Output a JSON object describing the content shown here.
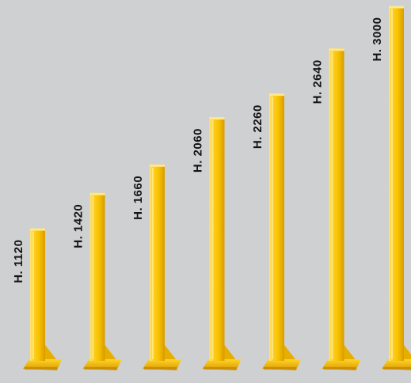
{
  "colors": {
    "background": "#cfd0d1",
    "post_light": "#ffd836",
    "post_main": "#f5c400",
    "post_shadow": "#d69a00",
    "label_text": "#141414"
  },
  "posts": [
    {
      "label": "H. 1120",
      "height_mm": 1120
    },
    {
      "label": "H. 1420",
      "height_mm": 1420
    },
    {
      "label": "H. 1660",
      "height_mm": 1660
    },
    {
      "label": "H. 2060",
      "height_mm": 2060
    },
    {
      "label": "H. 2260",
      "height_mm": 2260
    },
    {
      "label": "H. 2640",
      "height_mm": 2640
    },
    {
      "label": "H. 3000",
      "height_mm": 3000
    }
  ]
}
